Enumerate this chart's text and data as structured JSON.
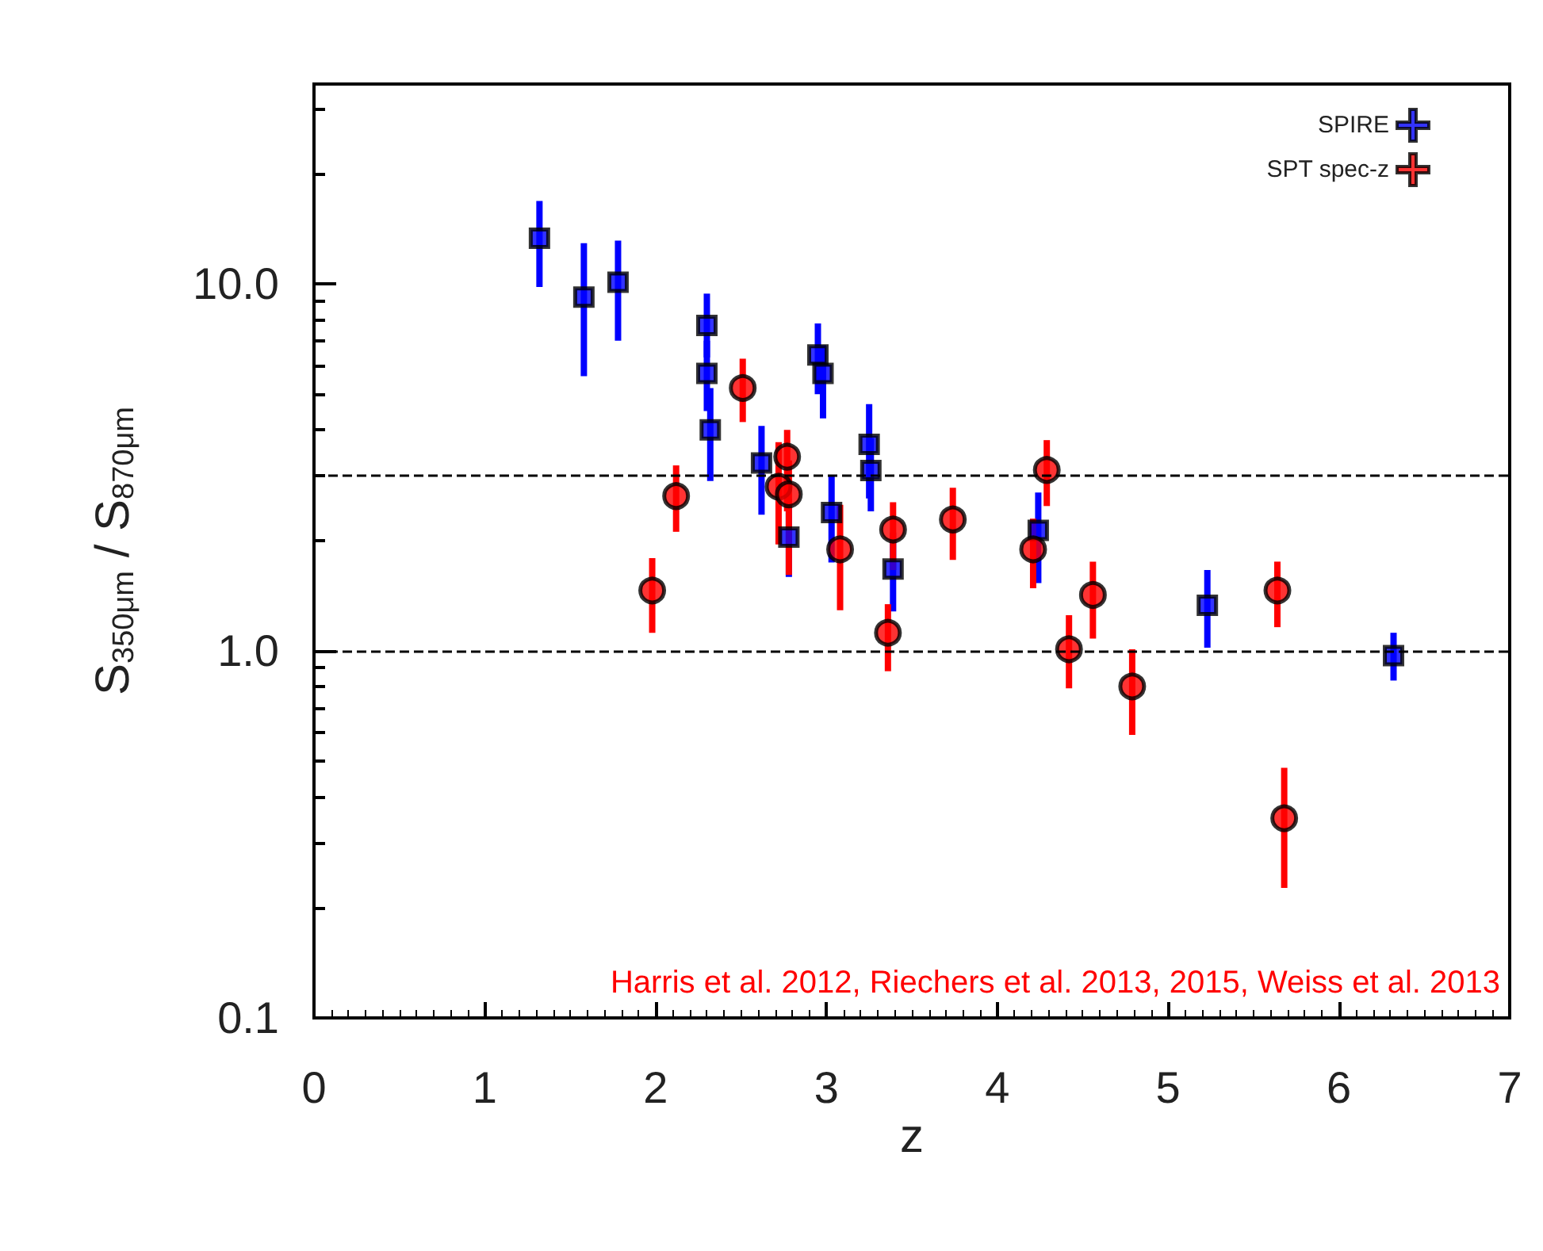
{
  "chart_data": {
    "type": "scatter",
    "xlabel": "z",
    "ylabel": "S$_{350μm}$ / S$_{870μm}$",
    "xlim": [
      0,
      7
    ],
    "xticks": [
      0,
      1,
      2,
      3,
      4,
      5,
      6,
      7
    ],
    "ylim": [
      0.1,
      35
    ],
    "yticks": [
      0.1,
      {
        "value": 1,
        "label": "1.0"
      },
      {
        "value": 10,
        "label": "10.0"
      }
    ],
    "log": "y",
    "grid": false,
    "legend": "top right",
    "series": [
      {
        "name": "SPIRE",
        "color": "#0000ff",
        "marker": "square",
        "x": [
          1.32,
          1.58,
          1.78,
          2.3,
          2.3,
          2.32,
          2.95,
          2.98,
          2.62,
          3.25,
          3.26,
          2.78,
          3.03,
          3.39,
          4.24,
          5.23,
          6.32
        ],
        "values": [
          13.3,
          9.2,
          10.1,
          7.7,
          5.7,
          4.0,
          6.4,
          5.7,
          3.25,
          3.65,
          3.1,
          2.04,
          2.38,
          1.67,
          2.13,
          1.33,
          0.97
        ],
        "errors": [
          [
            9.8,
            16.8
          ],
          [
            5.6,
            12.9
          ],
          [
            7.0,
            13.1
          ],
          [
            6.3,
            9.4
          ],
          [
            4.5,
            7.0
          ],
          [
            2.9,
            5.2
          ],
          [
            5.0,
            7.8
          ],
          [
            4.3,
            6.8
          ],
          [
            2.35,
            4.1
          ],
          [
            2.6,
            4.7
          ],
          [
            2.4,
            3.8
          ],
          [
            1.59,
            2.6
          ],
          [
            1.74,
            3.0
          ],
          [
            1.28,
            2.1
          ],
          [
            1.53,
            2.7
          ],
          [
            1.02,
            1.66
          ],
          [
            0.83,
            1.12
          ]
        ]
      },
      {
        "name": "SPT spec-z",
        "color": "#ff0000",
        "marker": "circle",
        "x": [
          1.98,
          2.12,
          2.51,
          2.72,
          2.77,
          2.78,
          3.08,
          3.36,
          3.39,
          3.74,
          4.21,
          4.29,
          4.42,
          4.56,
          4.79,
          5.64,
          5.68
        ],
        "values": [
          1.46,
          2.64,
          5.2,
          2.8,
          3.38,
          2.67,
          1.89,
          1.12,
          2.14,
          2.28,
          1.89,
          3.11,
          1.01,
          1.42,
          0.8,
          1.46,
          0.35
        ],
        "errors": [
          [
            1.12,
            1.79
          ],
          [
            2.11,
            3.2
          ],
          [
            4.2,
            6.25
          ],
          [
            1.95,
            3.7
          ],
          [
            2.4,
            4.0
          ],
          [
            1.61,
            3.3
          ],
          [
            1.29,
            2.5
          ],
          [
            0.88,
            1.34
          ],
          [
            1.66,
            2.54
          ],
          [
            1.77,
            2.78
          ],
          [
            1.48,
            2.29
          ],
          [
            2.48,
            3.75
          ],
          [
            0.79,
            1.25
          ],
          [
            1.08,
            1.75
          ],
          [
            0.59,
            1.01
          ],
          [
            1.16,
            1.75
          ],
          [
            0.226,
            0.48
          ]
        ]
      }
    ],
    "ref_lines": [
      {
        "axis": "y",
        "value": 3,
        "color": "#000000",
        "line_style": "dashed"
      },
      {
        "axis": "y",
        "value": 1,
        "color": "#000000",
        "line_style": "dashed"
      }
    ],
    "annotations": [
      "Harris et al. 2012, Riechers et al. 2013, 2015, Weiss et al. 2013"
    ]
  }
}
